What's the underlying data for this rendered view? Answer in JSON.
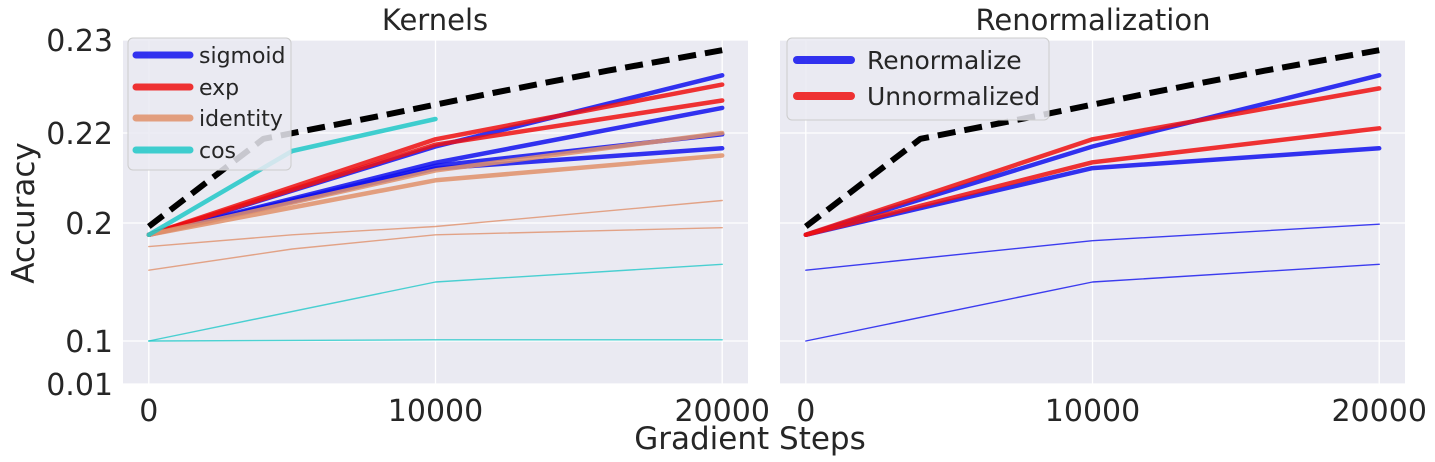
{
  "figure": {
    "xlabel": "Gradient Steps",
    "ylabel": "Accuracy"
  },
  "chart_data": [
    {
      "type": "line",
      "title": "Kernels",
      "xlabel": "Gradient Steps",
      "ylabel": "Accuracy",
      "xlim": [
        -900,
        20900
      ],
      "xticks": [
        0,
        10000,
        20000
      ],
      "xtick_labels": [
        "0",
        "10000",
        "20000"
      ],
      "ytick_values": [
        0.01,
        0.1,
        0.2,
        0.22,
        0.23
      ],
      "ytick_labels": [
        "0.01",
        "0.1",
        "0.2",
        "0.22",
        "0.23"
      ],
      "grid": true,
      "legend_position": "top-left",
      "legend": [
        {
          "name": "sigmoid",
          "color": "#1010ee"
        },
        {
          "name": "exp",
          "color": "#ee1010"
        },
        {
          "name": "identity",
          "color": "#e0906a"
        },
        {
          "name": "cos",
          "color": "#20c8c8"
        }
      ],
      "reference_line": {
        "color": "#000000",
        "style": "dashed",
        "x": [
          0,
          4000,
          8000,
          12000,
          16000,
          20000
        ],
        "y": [
          0.197,
          0.2187,
          0.2218,
          0.2243,
          0.2267,
          0.2289
        ]
      },
      "series": [
        {
          "name": "sigmoid",
          "color": "#1010ee",
          "thick": true,
          "x": [
            0,
            10000,
            20000
          ],
          "y": [
            0.19,
            0.217,
            0.2262
          ]
        },
        {
          "name": "sigmoid",
          "color": "#1010ee",
          "thick": true,
          "x": [
            0,
            10000,
            20000
          ],
          "y": [
            0.19,
            0.2134,
            0.2227
          ]
        },
        {
          "name": "sigmoid",
          "color": "#1010ee",
          "thick": true,
          "x": [
            0,
            10000,
            20000
          ],
          "y": [
            0.19,
            0.2127,
            0.2197
          ]
        },
        {
          "name": "sigmoid",
          "color": "#1010ee",
          "thick": true,
          "x": [
            0,
            10000,
            20000
          ],
          "y": [
            0.19,
            0.2121,
            0.2166
          ]
        },
        {
          "name": "exp",
          "color": "#ee1010",
          "thick": true,
          "x": [
            0,
            10000,
            20000
          ],
          "y": [
            0.19,
            0.2186,
            0.2252
          ]
        },
        {
          "name": "exp",
          "color": "#ee1010",
          "thick": true,
          "x": [
            0,
            10000,
            20000
          ],
          "y": [
            0.19,
            0.2174,
            0.2235
          ]
        },
        {
          "name": "identity",
          "color": "#e0906a",
          "thick": true,
          "x": [
            0,
            10000,
            20000
          ],
          "y": [
            0.19,
            0.2095,
            0.215
          ]
        },
        {
          "name": "identity",
          "color": "#e0906a",
          "thick": true,
          "x": [
            0,
            10000,
            20000
          ],
          "y": [
            0.19,
            0.2117,
            0.22
          ]
        },
        {
          "name": "identity",
          "color": "#e0906a",
          "thick": false,
          "x": [
            0,
            5000,
            10000,
            20000
          ],
          "y": [
            0.18,
            0.19,
            0.197,
            0.205
          ]
        },
        {
          "name": "identity",
          "color": "#e0906a",
          "thick": false,
          "x": [
            0,
            5000,
            10000,
            20000
          ],
          "y": [
            0.16,
            0.178,
            0.19,
            0.196
          ]
        },
        {
          "name": "cos",
          "color": "#20c8c8",
          "thick": true,
          "x": [
            0,
            5000,
            10000
          ],
          "y": [
            0.19,
            0.216,
            0.2215
          ]
        },
        {
          "name": "cos",
          "color": "#20c8c8",
          "thick": false,
          "x": [
            0,
            10000,
            20000
          ],
          "y": [
            0.1,
            0.15,
            0.165
          ]
        },
        {
          "name": "cos",
          "color": "#20c8c8",
          "thick": false,
          "x": [
            0,
            10000,
            20000
          ],
          "y": [
            0.1,
            0.101,
            0.101
          ]
        }
      ]
    },
    {
      "type": "line",
      "title": "Renormalization",
      "xlabel": "Gradient Steps",
      "ylabel": "Accuracy",
      "xlim": [
        -900,
        20900
      ],
      "xticks": [
        0,
        10000,
        20000
      ],
      "xtick_labels": [
        "0",
        "10000",
        "20000"
      ],
      "ytick_values": [
        0.01,
        0.1,
        0.2,
        0.22,
        0.23
      ],
      "ytick_labels": [],
      "grid": true,
      "legend_position": "top-left",
      "legend": [
        {
          "name": "Renormalize",
          "color": "#1010ee"
        },
        {
          "name": "Unnormalized",
          "color": "#ee1010"
        }
      ],
      "reference_line": {
        "color": "#000000",
        "style": "dashed",
        "x": [
          0,
          4000,
          8000,
          12000,
          16000,
          20000
        ],
        "y": [
          0.197,
          0.2187,
          0.2218,
          0.2243,
          0.2267,
          0.2289
        ]
      },
      "series": [
        {
          "name": "Renormalize",
          "color": "#1010ee",
          "thick": true,
          "x": [
            0,
            10000,
            20000
          ],
          "y": [
            0.19,
            0.217,
            0.2262
          ]
        },
        {
          "name": "Renormalize",
          "color": "#1010ee",
          "thick": true,
          "x": [
            0,
            10000,
            20000
          ],
          "y": [
            0.19,
            0.2122,
            0.2166
          ]
        },
        {
          "name": "Renormalize",
          "color": "#1010ee",
          "thick": false,
          "x": [
            0,
            10000,
            20000
          ],
          "y": [
            0.16,
            0.185,
            0.199
          ]
        },
        {
          "name": "Renormalize",
          "color": "#1010ee",
          "thick": false,
          "x": [
            0,
            10000,
            20000
          ],
          "y": [
            0.1,
            0.15,
            0.165
          ]
        },
        {
          "name": "Unnormalized",
          "color": "#ee1010",
          "thick": true,
          "x": [
            0,
            10000,
            20000
          ],
          "y": [
            0.19,
            0.2186,
            0.2248
          ]
        },
        {
          "name": "Unnormalized",
          "color": "#ee1010",
          "thick": true,
          "x": [
            0,
            10000,
            20000
          ],
          "y": [
            0.19,
            0.2135,
            0.2205
          ]
        }
      ]
    }
  ]
}
